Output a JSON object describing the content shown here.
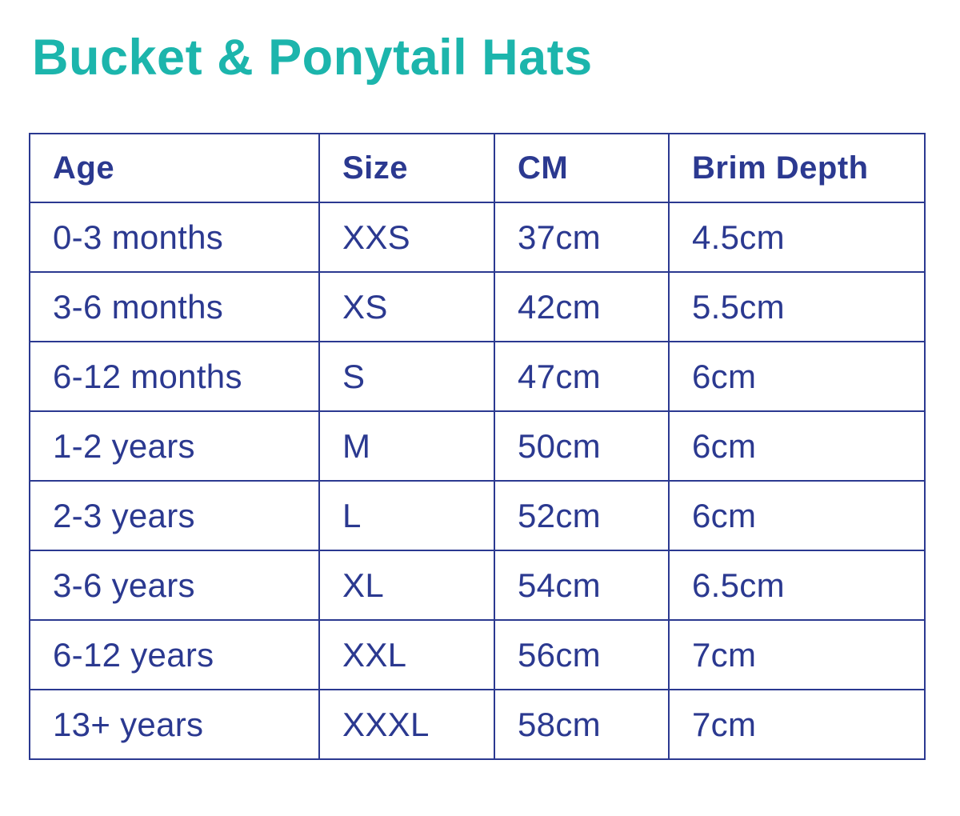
{
  "page": {
    "title": "Bucket & Ponytail Hats"
  },
  "colors": {
    "title_teal": "#1CB5AC",
    "text_navy": "#2B3990",
    "border_navy": "#2B3990",
    "background": "#FFFFFF"
  },
  "table": {
    "headers": [
      "Age",
      "Size",
      "CM",
      "Brim Depth"
    ],
    "rows": [
      [
        "0-3 months",
        "XXS",
        "37cm",
        "4.5cm"
      ],
      [
        "3-6 months",
        "XS",
        "42cm",
        "5.5cm"
      ],
      [
        "6-12 months",
        "S",
        "47cm",
        "6cm"
      ],
      [
        "1-2 years",
        "M",
        "50cm",
        "6cm"
      ],
      [
        "2-3 years",
        "L",
        "52cm",
        "6cm"
      ],
      [
        "3-6 years",
        "XL",
        "54cm",
        "6.5cm"
      ],
      [
        "6-12 years",
        "XXL",
        "56cm",
        "7cm"
      ],
      [
        "13+ years",
        "XXXL",
        "58cm",
        "7cm"
      ]
    ]
  }
}
